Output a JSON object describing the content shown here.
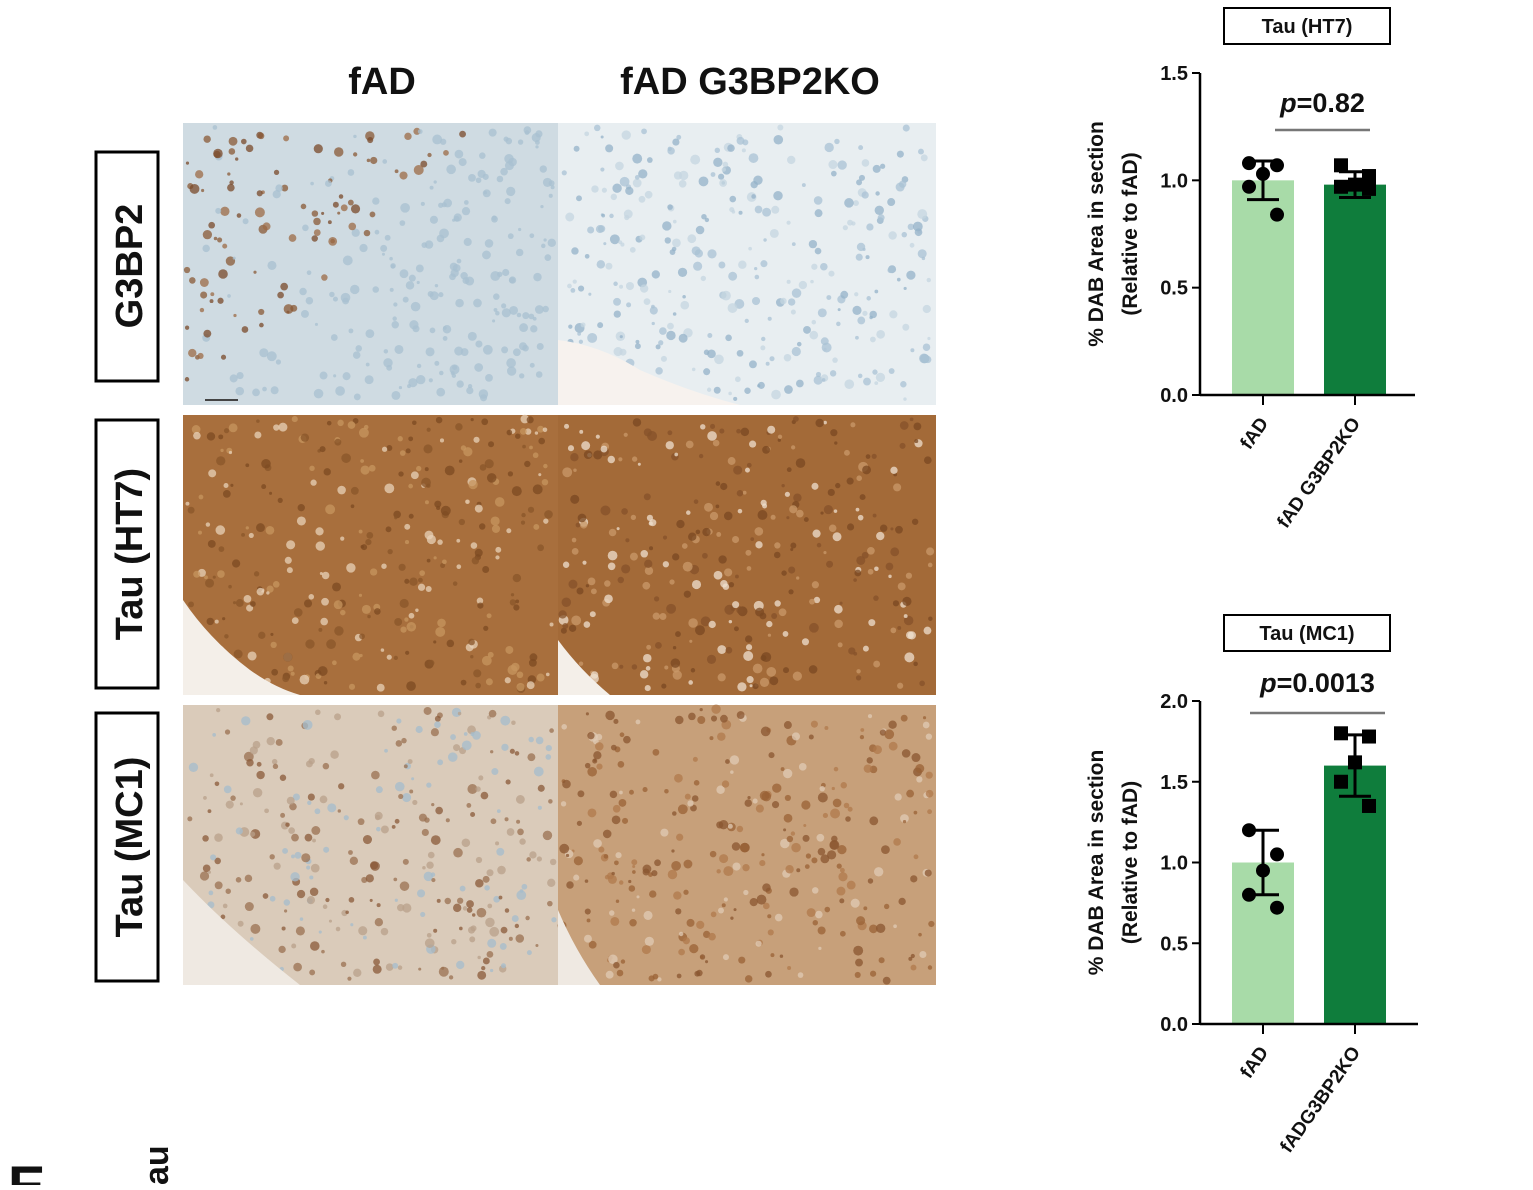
{
  "figure": {
    "column_headers": [
      "fAD",
      "fAD G3BP2KO"
    ],
    "row_labels": [
      "G3BP2",
      "Tau (HT7)",
      "Tau (MC1)"
    ],
    "next_panel_label": "E",
    "next_panel_fragment": "au"
  },
  "chart_data": [
    {
      "type": "bar",
      "title": "Tau (HT7)",
      "ylabel": [
        "% DAB Area in section",
        "(Relative to fAD)"
      ],
      "categories": [
        "fAD",
        "fAD G3BP2KO"
      ],
      "values": [
        1.0,
        0.98
      ],
      "errors": [
        0.09,
        0.06
      ],
      "points": [
        [
          1.08,
          1.07,
          1.03,
          0.97,
          0.84
        ],
        [
          1.07,
          1.02,
          0.98,
          0.97,
          0.96
        ]
      ],
      "colors": [
        "#a8dba8",
        "#0f7d3c"
      ],
      "p_label": "p",
      "p_value": "=0.82",
      "ylim": [
        0,
        1.5
      ],
      "yticks": [
        {
          "value": 0,
          "label": "0.0"
        },
        {
          "value": 0.5,
          "label": "0.5"
        },
        {
          "value": 1,
          "label": "1.0"
        },
        {
          "value": 1.5,
          "label": "1.5"
        }
      ]
    },
    {
      "type": "bar",
      "title": "Tau (MC1)",
      "ylabel": [
        "% DAB Area in section",
        "(Relative to fAD)"
      ],
      "categories": [
        "fAD",
        "fADG3BP2KO"
      ],
      "values": [
        1.0,
        1.6
      ],
      "errors": [
        0.2,
        0.19
      ],
      "points": [
        [
          1.2,
          1.05,
          0.95,
          0.8,
          0.72
        ],
        [
          1.8,
          1.78,
          1.62,
          1.5,
          1.35
        ]
      ],
      "colors": [
        "#a8dba8",
        "#0f7d3c"
      ],
      "p_label": "p",
      "p_value": "=0.0013",
      "ylim": [
        0,
        2
      ],
      "yticks": [
        {
          "value": 0,
          "label": "0.0"
        },
        {
          "value": 0.5,
          "label": "0.5"
        },
        {
          "value": 1,
          "label": "1.0"
        },
        {
          "value": 1.5,
          "label": "1.5"
        },
        {
          "value": 2,
          "label": "2.0"
        }
      ]
    }
  ]
}
